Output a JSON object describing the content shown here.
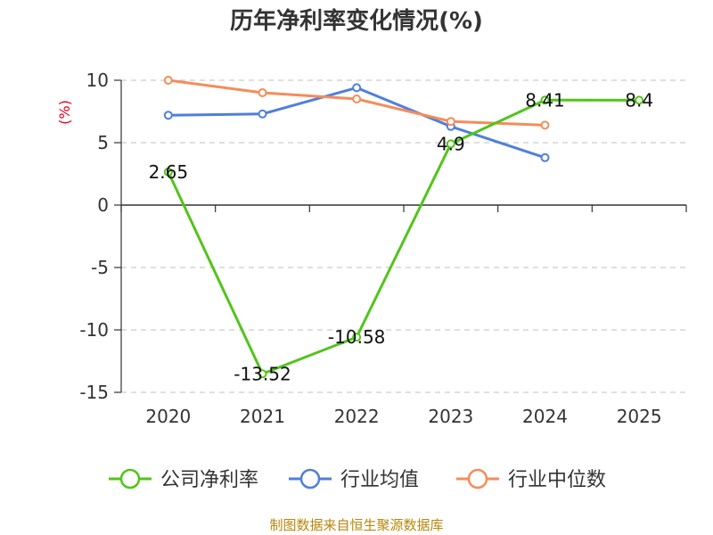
{
  "chart_data": {
    "type": "line",
    "title": "历年净利率变化情况(%)",
    "ylabel": "(%)",
    "categories": [
      "2020",
      "2021",
      "2022",
      "2023",
      "2024",
      "2025"
    ],
    "ylim": [
      -15,
      10
    ],
    "yticks": [
      10,
      5,
      0,
      -5,
      -10,
      -15
    ],
    "grid": true,
    "legend_position": "bottom",
    "series": [
      {
        "name": "公司净利率",
        "color": "#52c41a",
        "values": [
          2.65,
          -13.52,
          -10.58,
          4.9,
          8.41,
          8.4
        ],
        "labels": [
          "2.65",
          "-13.52",
          "-10.58",
          "4.9",
          "8.41",
          "8.4"
        ]
      },
      {
        "name": "行业均值",
        "color": "#4f7fdc",
        "values": [
          7.2,
          7.3,
          9.4,
          6.3,
          3.8,
          null
        ]
      },
      {
        "name": "行业中位数",
        "color": "#f58c5a",
        "values": [
          10.0,
          9.0,
          8.5,
          6.7,
          6.4,
          null
        ]
      }
    ]
  },
  "footer": {
    "source": "制图数据来自恒生聚源数据库"
  }
}
